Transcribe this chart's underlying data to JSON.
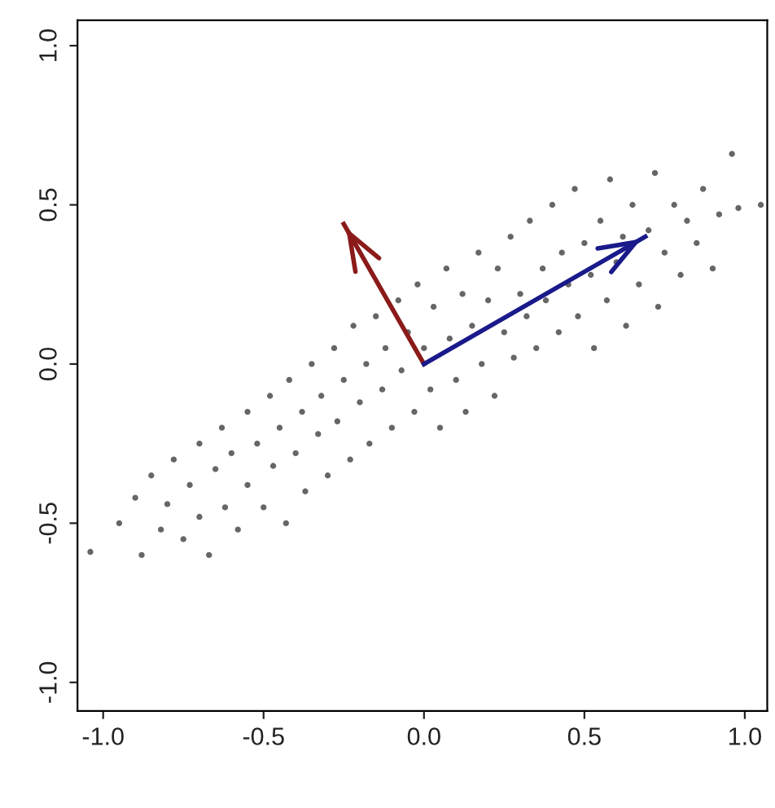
{
  "chart_data": {
    "type": "scatter",
    "xlim": [
      -1.08,
      1.07
    ],
    "ylim": [
      -1.09,
      1.08
    ],
    "xticks": [
      {
        "value": -1.0,
        "label": "-1.0"
      },
      {
        "value": -0.5,
        "label": "-0.5"
      },
      {
        "value": 0.0,
        "label": "0.0"
      },
      {
        "value": 0.5,
        "label": "0.5"
      },
      {
        "value": 1.0,
        "label": "1.0"
      }
    ],
    "yticks": [
      {
        "value": -1.0,
        "label": "-1.0"
      },
      {
        "value": -0.5,
        "label": "-0.5"
      },
      {
        "value": 0.0,
        "label": "0.0"
      },
      {
        "value": 0.5,
        "label": "0.5"
      },
      {
        "value": 1.0,
        "label": "1.0"
      }
    ],
    "grid": false,
    "legend": false,
    "series": [
      {
        "color": "#666666",
        "x": [
          -1.04,
          -0.95,
          -0.9,
          -0.88,
          -0.85,
          -0.82,
          -0.8,
          -0.78,
          -0.75,
          -0.73,
          -0.7,
          -0.7,
          -0.67,
          -0.65,
          -0.63,
          -0.62,
          -0.6,
          -0.58,
          -0.55,
          -0.55,
          -0.52,
          -0.5,
          -0.48,
          -0.47,
          -0.45,
          -0.43,
          -0.42,
          -0.4,
          -0.38,
          -0.37,
          -0.35,
          -0.33,
          -0.32,
          -0.3,
          -0.28,
          -0.27,
          -0.25,
          -0.23,
          -0.22,
          -0.2,
          -0.18,
          -0.17,
          -0.15,
          -0.13,
          -0.12,
          -0.1,
          -0.08,
          -0.07,
          -0.05,
          -0.03,
          -0.02,
          0.0,
          0.02,
          0.03,
          0.05,
          0.07,
          0.08,
          0.1,
          0.12,
          0.13,
          0.15,
          0.17,
          0.18,
          0.2,
          0.22,
          0.23,
          0.25,
          0.27,
          0.28,
          0.3,
          0.32,
          0.33,
          0.35,
          0.37,
          0.38,
          0.4,
          0.42,
          0.43,
          0.45,
          0.47,
          0.48,
          0.5,
          0.52,
          0.53,
          0.55,
          0.57,
          0.58,
          0.6,
          0.62,
          0.63,
          0.65,
          0.67,
          0.7,
          0.72,
          0.73,
          0.75,
          0.78,
          0.8,
          0.82,
          0.85,
          0.87,
          0.9,
          0.92,
          0.96,
          0.98,
          1.05
        ],
        "values": [
          -0.59,
          -0.5,
          -0.42,
          -0.6,
          -0.35,
          -0.52,
          -0.44,
          -0.3,
          -0.55,
          -0.38,
          -0.25,
          -0.48,
          -0.6,
          -0.33,
          -0.2,
          -0.45,
          -0.28,
          -0.52,
          -0.15,
          -0.38,
          -0.25,
          -0.45,
          -0.1,
          -0.32,
          -0.2,
          -0.5,
          -0.05,
          -0.28,
          -0.15,
          -0.4,
          0.0,
          -0.22,
          -0.1,
          -0.35,
          0.05,
          -0.18,
          -0.05,
          -0.3,
          0.12,
          -0.12,
          0.0,
          -0.25,
          0.15,
          -0.08,
          0.05,
          -0.2,
          0.2,
          -0.02,
          0.1,
          -0.15,
          0.25,
          0.05,
          -0.08,
          0.18,
          -0.2,
          0.3,
          0.08,
          -0.05,
          0.22,
          -0.15,
          0.12,
          0.35,
          0.0,
          0.2,
          -0.1,
          0.3,
          0.1,
          0.4,
          0.02,
          0.22,
          0.15,
          0.45,
          0.05,
          0.3,
          0.2,
          0.5,
          0.1,
          0.35,
          0.25,
          0.55,
          0.15,
          0.38,
          0.28,
          0.05,
          0.45,
          0.2,
          0.58,
          0.32,
          0.4,
          0.12,
          0.5,
          0.25,
          0.42,
          0.6,
          0.18,
          0.35,
          0.5,
          0.28,
          0.45,
          0.38,
          0.55,
          0.3,
          0.47,
          0.66,
          0.49,
          0.5
        ]
      },
      {
        "type": "line",
        "color": "#8b1a1a",
        "x": [
          0.0,
          -0.25
        ],
        "values": [
          0.0,
          0.44
        ]
      },
      {
        "type": "line",
        "color": "#1a1a8b",
        "x": [
          0.0,
          0.69
        ],
        "values": [
          0.0,
          0.4
        ]
      }
    ]
  }
}
